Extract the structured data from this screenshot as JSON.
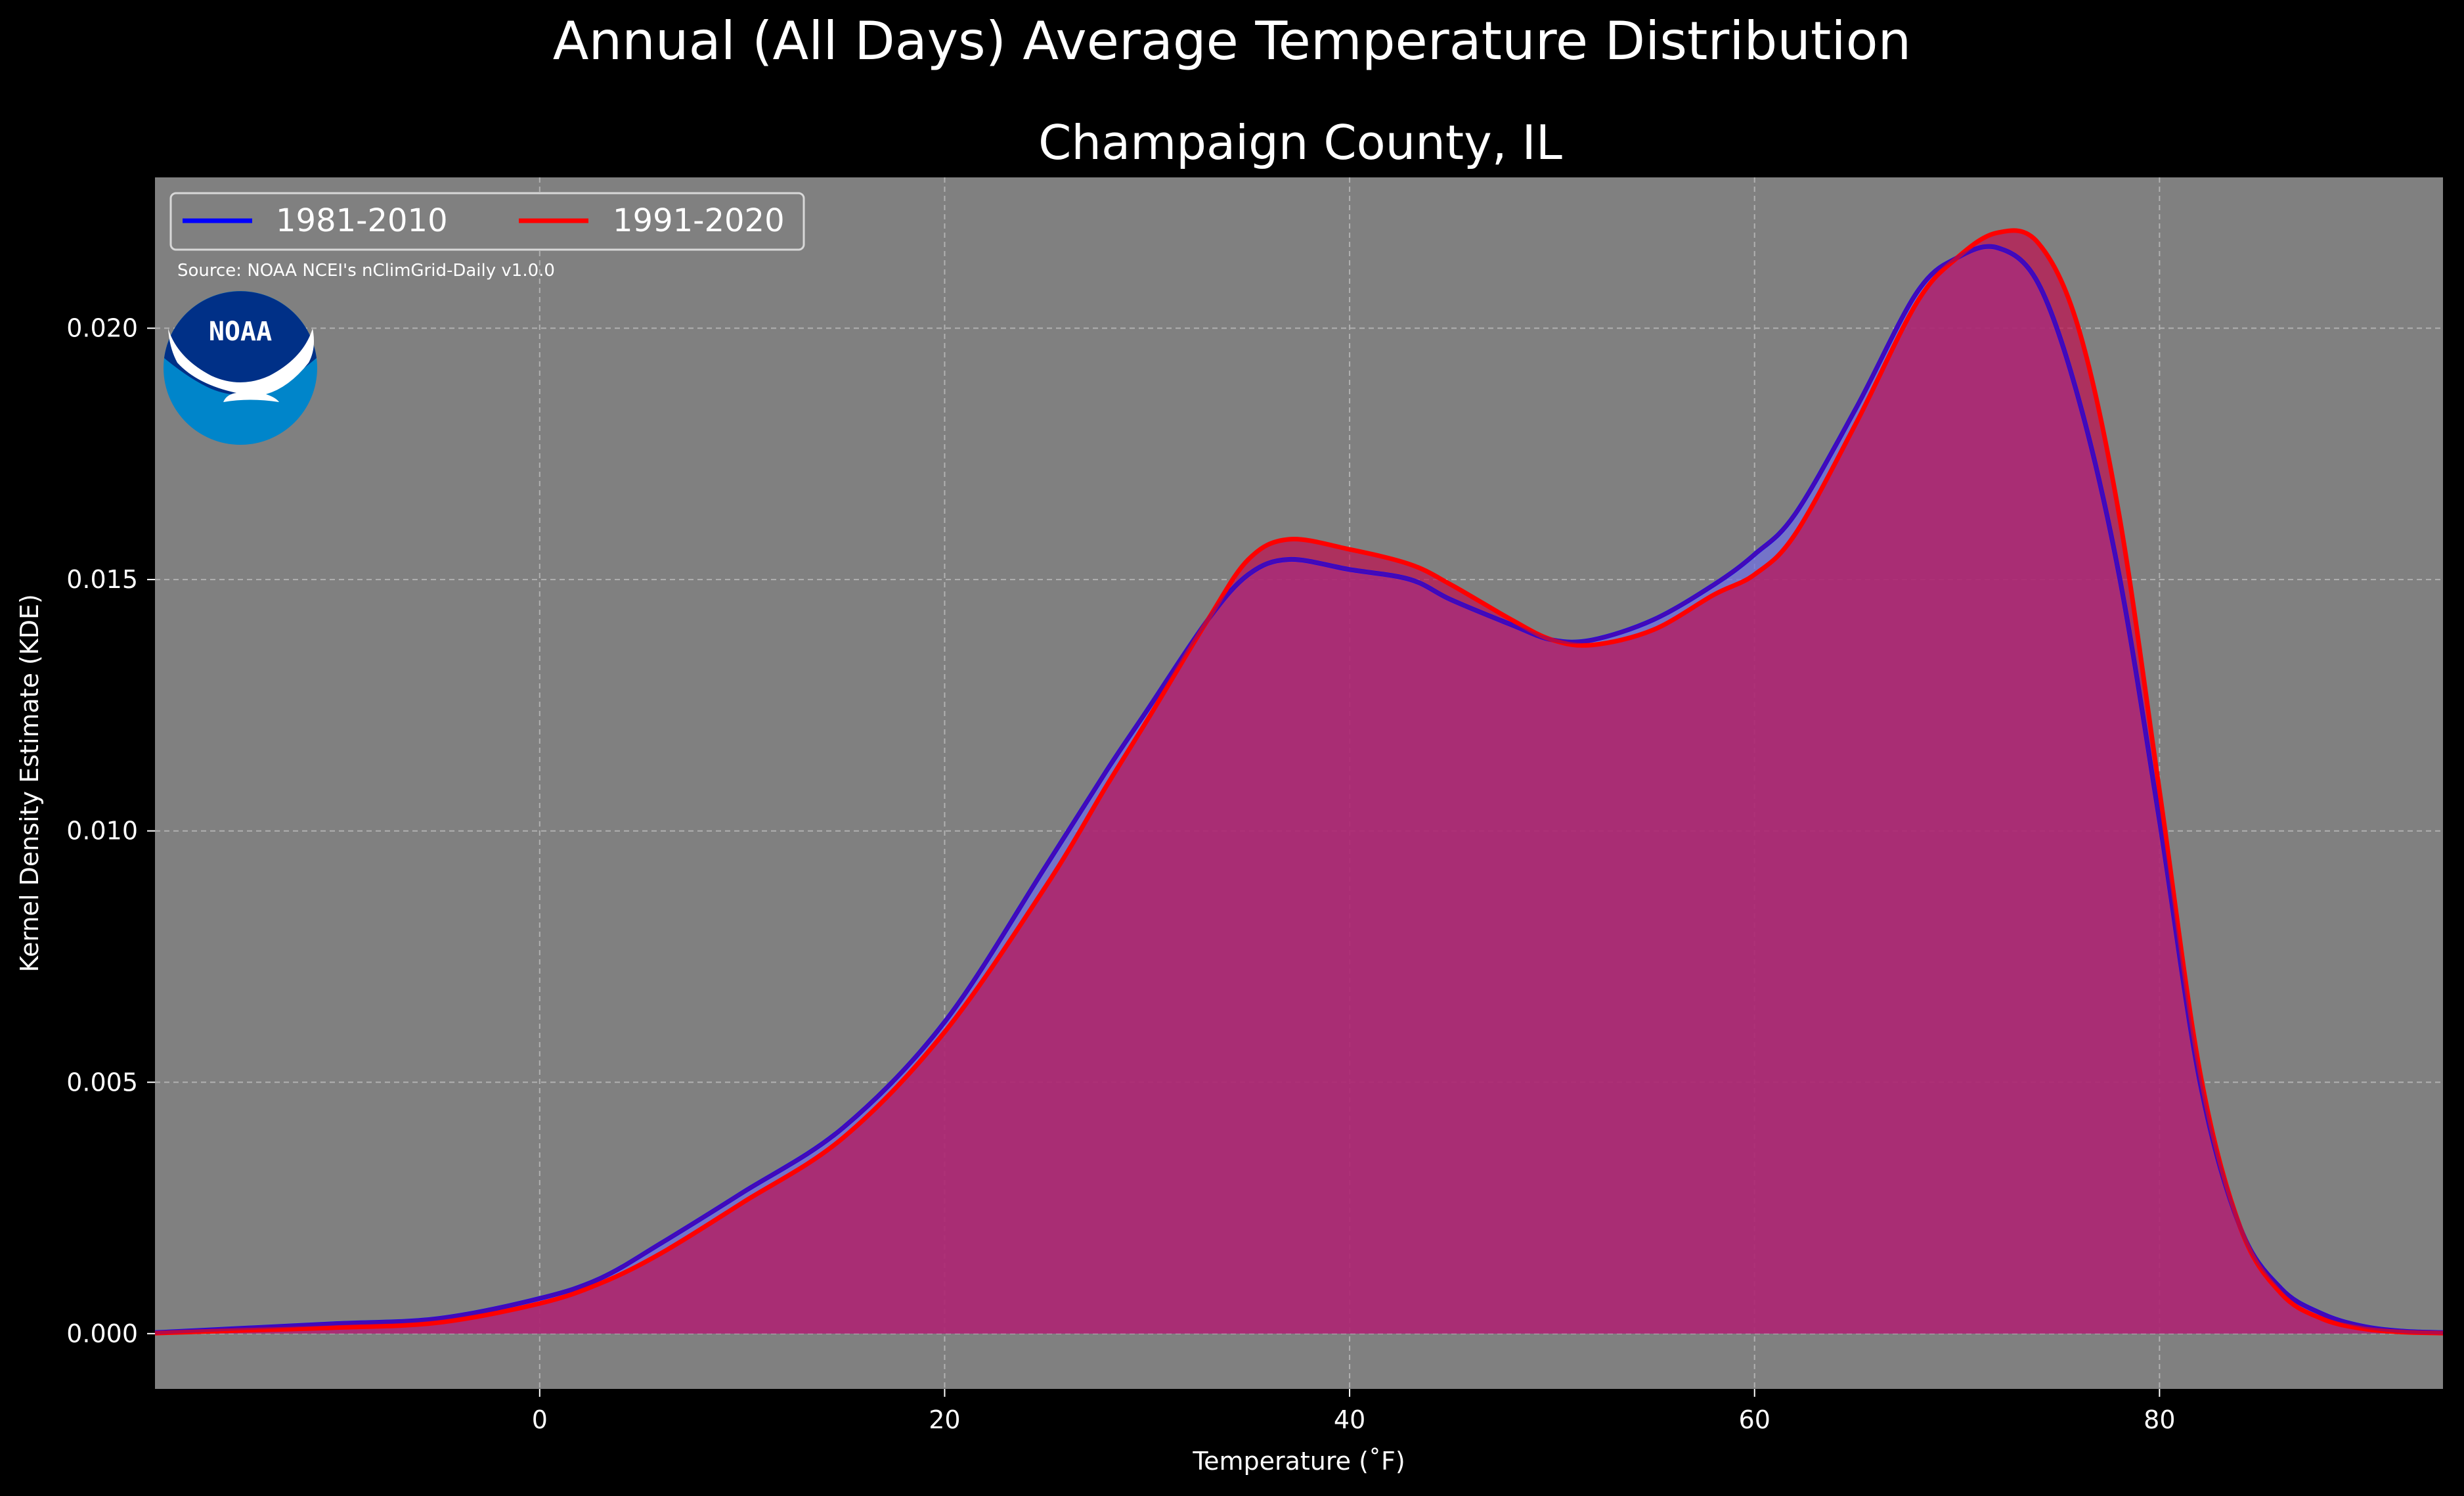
{
  "chart_data": {
    "type": "area",
    "suptitle": "Annual (All Days) Average Temperature Distribution",
    "title": "Champaign County, IL",
    "xlabel": "Temperature (˚F)",
    "ylabel": "Kernel Density Estimate (KDE)",
    "xlim": [
      -19,
      94
    ],
    "ylim": [
      -0.0011,
      0.023
    ],
    "xticks": [
      0,
      20,
      40,
      60,
      80
    ],
    "yticks": [
      0.0,
      0.005,
      0.01,
      0.015,
      0.02
    ],
    "ytick_labels": [
      "0.000",
      "0.005",
      "0.010",
      "0.015",
      "0.020"
    ],
    "grid": true,
    "legend_position": "top-left",
    "source": "Source: NOAA NCEI's nClimGrid-Daily v1.0.0",
    "logo_text": "NOAA",
    "background": "#000000",
    "plot_background": "#808080",
    "x": [
      -19,
      -15,
      -10,
      -5,
      0,
      3,
      6,
      10,
      15,
      20,
      25,
      28,
      30,
      33,
      35,
      37,
      40,
      43,
      45,
      48,
      50,
      52,
      55,
      58,
      60,
      62,
      65,
      68,
      70,
      72,
      74,
      76,
      78,
      80,
      82,
      84,
      86,
      88,
      90,
      92,
      94
    ],
    "series": [
      {
        "name": "1981-2010",
        "color": "#0000ff",
        "fill": "#7070e0",
        "values": [
          2e-05,
          0.0001,
          0.0002,
          0.0003,
          0.0007,
          0.0011,
          0.0018,
          0.0028,
          0.0041,
          0.0062,
          0.0093,
          0.0112,
          0.0124,
          0.0142,
          0.0151,
          0.0154,
          0.0152,
          0.015,
          0.0146,
          0.0141,
          0.0138,
          0.0138,
          0.0142,
          0.0149,
          0.0155,
          0.0163,
          0.0184,
          0.0207,
          0.0214,
          0.0216,
          0.0209,
          0.0186,
          0.0151,
          0.0102,
          0.005,
          0.0021,
          0.0009,
          0.0004,
          0.00015,
          5e-05,
          2e-05
        ]
      },
      {
        "name": "1991-2020",
        "color": "#ff0000",
        "fill": "#c01050",
        "values": [
          1e-05,
          6e-05,
          0.00012,
          0.00022,
          0.0006,
          0.001,
          0.0016,
          0.0026,
          0.0039,
          0.006,
          0.0089,
          0.0109,
          0.0122,
          0.0142,
          0.0154,
          0.0158,
          0.0156,
          0.0153,
          0.0149,
          0.0142,
          0.0138,
          0.0137,
          0.014,
          0.0147,
          0.0151,
          0.0159,
          0.0181,
          0.0205,
          0.0214,
          0.0219,
          0.0217,
          0.02,
          0.0163,
          0.0108,
          0.0052,
          0.0021,
          0.0008,
          0.0003,
          0.0001,
          3e-05,
          1e-05
        ]
      }
    ]
  }
}
